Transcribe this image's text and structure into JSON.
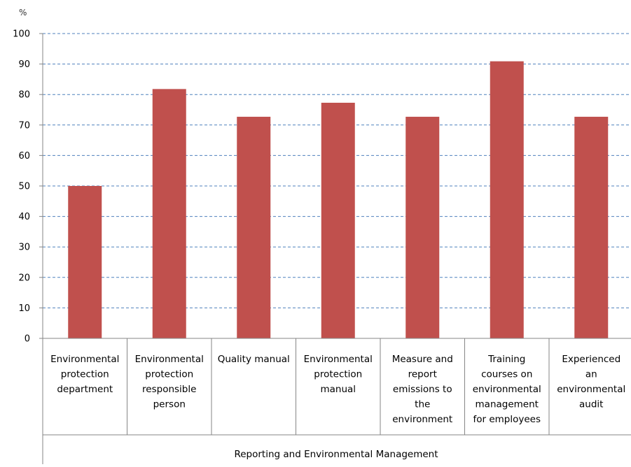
{
  "chart_data": {
    "type": "bar",
    "y_unit": "%",
    "ylim": [
      0,
      100
    ],
    "y_ticks": [
      0,
      10,
      20,
      30,
      40,
      50,
      60,
      70,
      80,
      90,
      100
    ],
    "grid": true,
    "bar_color": "#c0504d",
    "categories": [
      "Environmental protection department",
      "Environmental protection responsible person",
      "Quality manual",
      "Environmental protection manual",
      "Measure and report emissions to the environment",
      "Training courses on environmental management for employees",
      "Experienced an environmental audit"
    ],
    "category_lines": [
      [
        "Environmental",
        "protection",
        "department"
      ],
      [
        "Environmental",
        "protection",
        "responsible",
        "person"
      ],
      [
        "Quality manual"
      ],
      [
        "Environmental",
        "protection",
        "manual"
      ],
      [
        "Measure and",
        "report",
        "emissions to",
        "the",
        "environment"
      ],
      [
        "Training",
        "courses on",
        "environmental",
        "management",
        "for employees"
      ],
      [
        "Experienced",
        "an",
        "environmental",
        "audit"
      ]
    ],
    "values": [
      50,
      81.8,
      72.7,
      77.3,
      72.7,
      90.9,
      72.7
    ],
    "group_label": "Reporting and Environmental Management"
  }
}
